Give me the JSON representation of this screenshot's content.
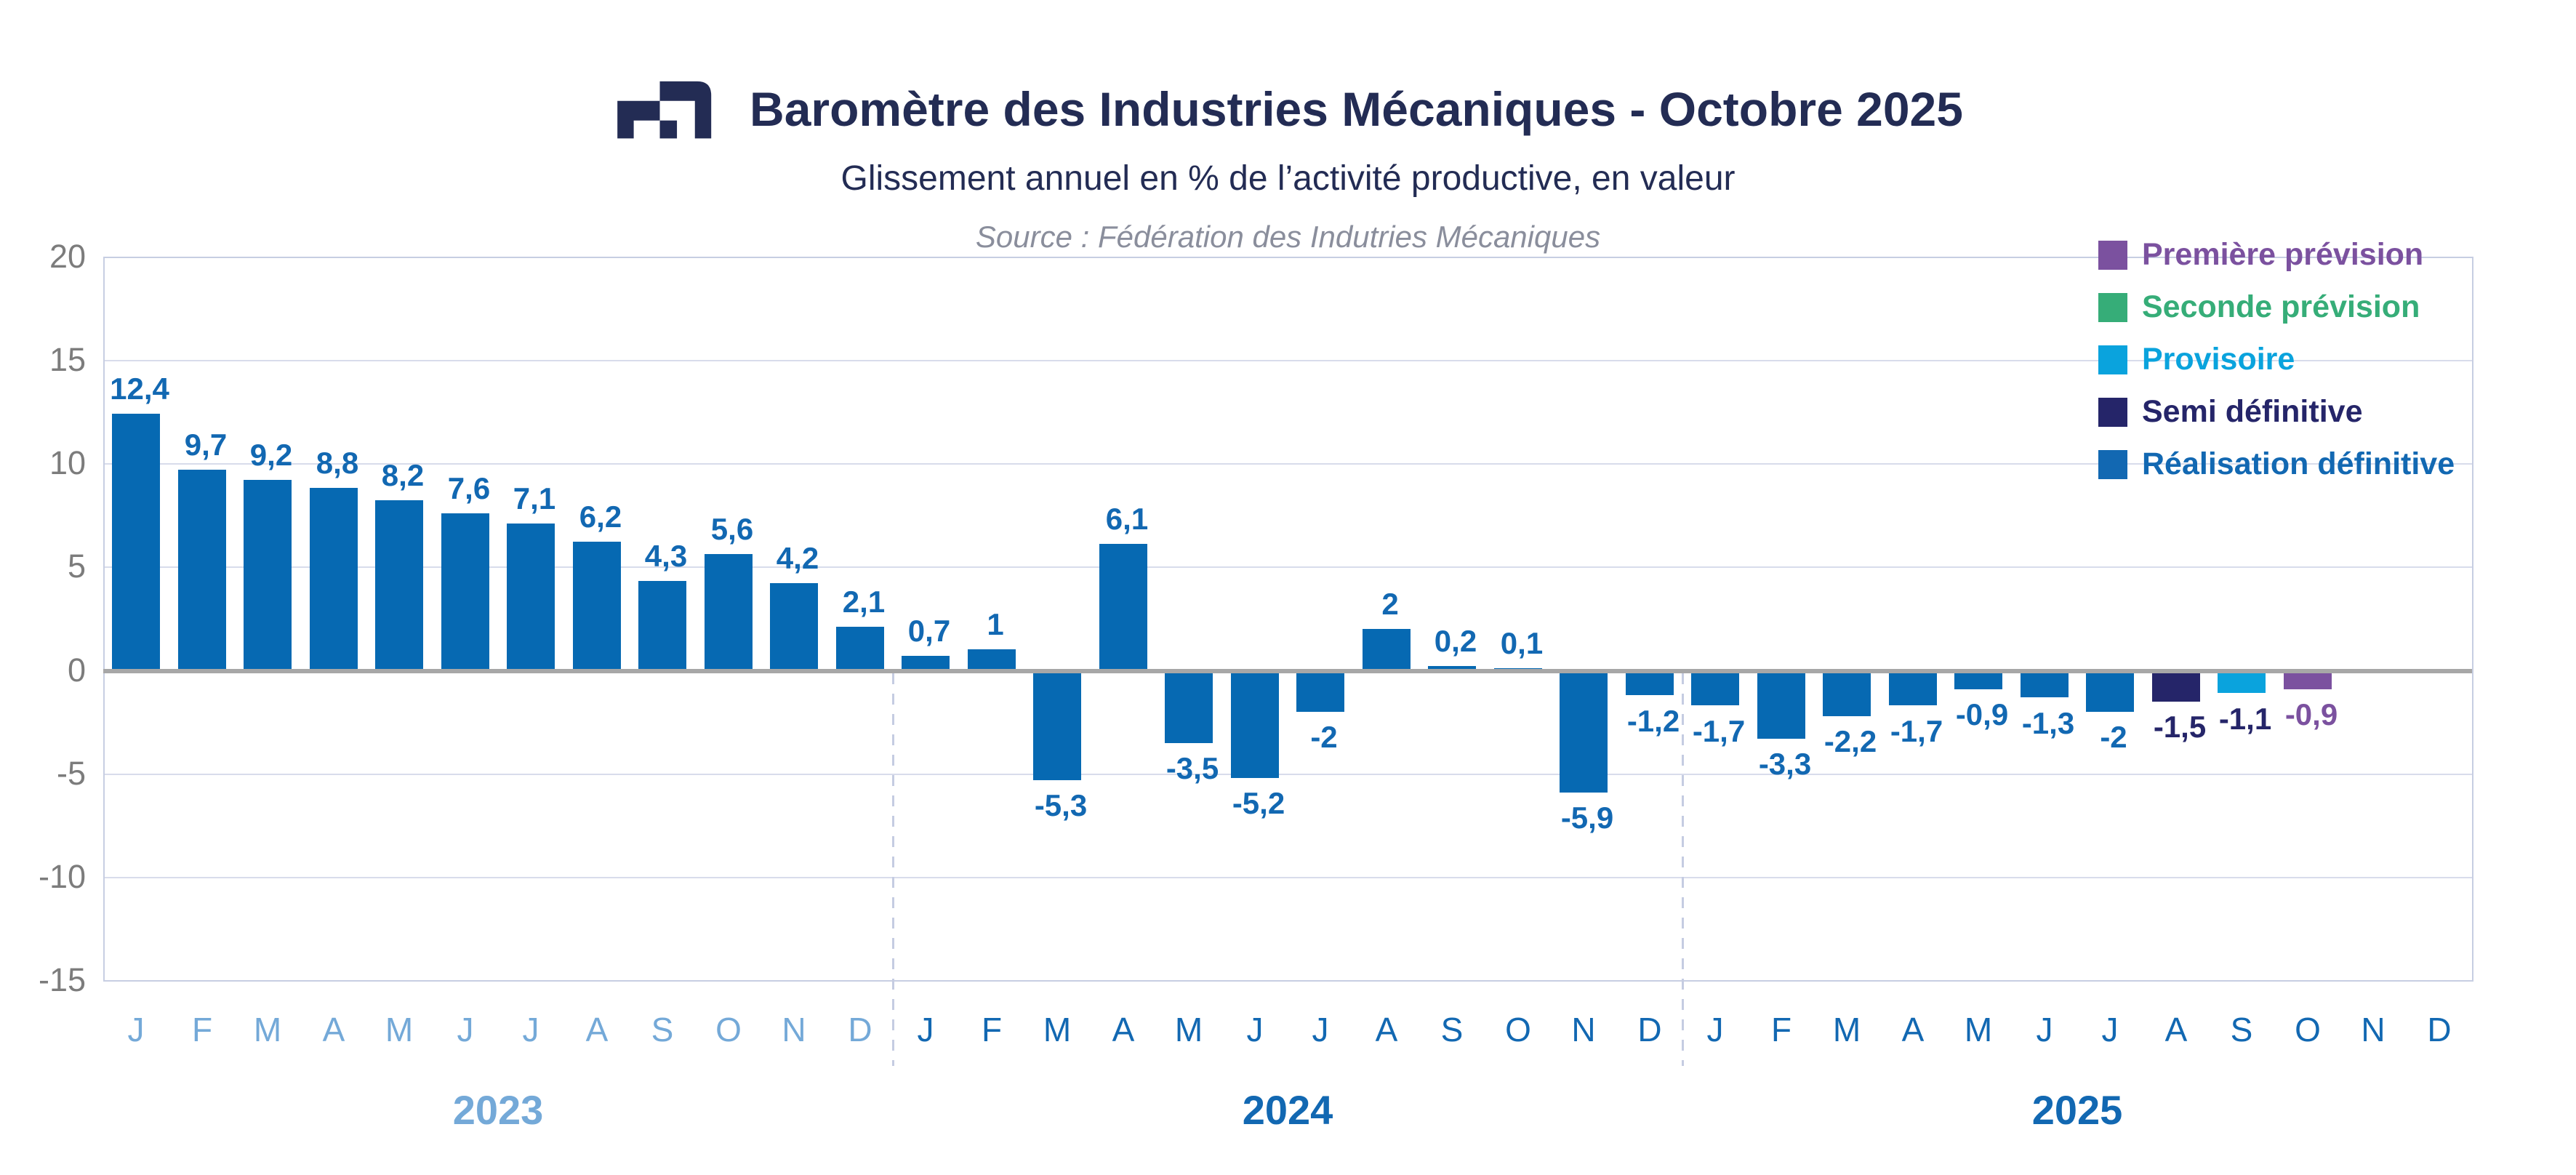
{
  "header": {
    "title": "Baromètre des Industries Mécaniques - Octobre 2025",
    "subtitle": "Glissement annuel en % de l’activité productive, en valeur",
    "source": "Source : Fédération des Indutries Mécaniques"
  },
  "legend": {
    "items": [
      {
        "label": "Première prévision",
        "color": "#7B519F"
      },
      {
        "label": "Seconde prévision",
        "color": "#36AD78"
      },
      {
        "label": "Provisoire",
        "color": "#0AA3DD"
      },
      {
        "label": "Semi définitive",
        "color": "#252569"
      },
      {
        "label": "Réalisation définitive",
        "color": "#1268B2"
      }
    ]
  },
  "chart_data": {
    "type": "bar",
    "title": "Baromètre des Industries Mécaniques - Octobre 2025",
    "subtitle": "Glissement annuel en % de l’activité productive, en valeur",
    "source": "Source : Fédération des Indutries Mécaniques",
    "ylabel": "Glissement annuel en % de l'activité productive, en valeur",
    "ylim": [
      -15,
      20
    ],
    "yticks": [
      20,
      15,
      10,
      5,
      0,
      -5,
      -10,
      -15
    ],
    "grid": true,
    "legend_position": "top-right",
    "colors": {
      "grid": "#D8DCEB",
      "plot_border": "#C7CEE2",
      "zero_line": "#A7A7A7",
      "year_separator": "#C5CCE2",
      "y_tick_text": "#7C7C7C",
      "title_text": "#232C54",
      "source_text": "#8A8E9C",
      "logo": "#232C54"
    },
    "series_colors": {
      "definitive": "#0669B2",
      "semi_definitive": "#252569",
      "provisoire": "#0AA3DD",
      "premiere_prevision": "#7B519F",
      "seconde_prevision": "#36AD78"
    },
    "value_label_colors": {
      "definitive": "#1268B2",
      "semi_definitive": "#252569",
      "provisoire": "#252569",
      "premiere_prevision": "#7B519F"
    },
    "years": [
      {
        "label": "2023",
        "color": "#74A9D8"
      },
      {
        "label": "2024",
        "color": "#1268B2"
      },
      {
        "label": "2025",
        "color": "#1268B2"
      }
    ],
    "months": [
      {
        "year": 0,
        "month": "J",
        "value": 12.4,
        "label": "12,4",
        "category": "definitive"
      },
      {
        "year": 0,
        "month": "F",
        "value": 9.7,
        "label": "9,7",
        "category": "definitive"
      },
      {
        "year": 0,
        "month": "M",
        "value": 9.2,
        "label": "9,2",
        "category": "definitive"
      },
      {
        "year": 0,
        "month": "A",
        "value": 8.8,
        "label": "8,8",
        "category": "definitive"
      },
      {
        "year": 0,
        "month": "M",
        "value": 8.2,
        "label": "8,2",
        "category": "definitive"
      },
      {
        "year": 0,
        "month": "J",
        "value": 7.6,
        "label": "7,6",
        "category": "definitive"
      },
      {
        "year": 0,
        "month": "J",
        "value": 7.1,
        "label": "7,1",
        "category": "definitive"
      },
      {
        "year": 0,
        "month": "A",
        "value": 6.2,
        "label": "6,2",
        "category": "definitive"
      },
      {
        "year": 0,
        "month": "S",
        "value": 4.3,
        "label": "4,3",
        "category": "definitive"
      },
      {
        "year": 0,
        "month": "O",
        "value": 5.6,
        "label": "5,6",
        "category": "definitive"
      },
      {
        "year": 0,
        "month": "N",
        "value": 4.2,
        "label": "4,2",
        "category": "definitive"
      },
      {
        "year": 0,
        "month": "D",
        "value": 2.1,
        "label": "2,1",
        "category": "definitive"
      },
      {
        "year": 1,
        "month": "J",
        "value": 0.7,
        "label": "0,7",
        "category": "definitive"
      },
      {
        "year": 1,
        "month": "F",
        "value": 1,
        "label": "1",
        "category": "definitive"
      },
      {
        "year": 1,
        "month": "M",
        "value": -5.3,
        "label": "-5,3",
        "category": "definitive"
      },
      {
        "year": 1,
        "month": "A",
        "value": 6.1,
        "label": "6,1",
        "category": "definitive"
      },
      {
        "year": 1,
        "month": "M",
        "value": -3.5,
        "label": "-3,5",
        "category": "definitive"
      },
      {
        "year": 1,
        "month": "J",
        "value": -5.2,
        "label": "-5,2",
        "category": "definitive"
      },
      {
        "year": 1,
        "month": "J",
        "value": -2,
        "label": "-2",
        "category": "definitive"
      },
      {
        "year": 1,
        "month": "A",
        "value": 2,
        "label": "2",
        "category": "definitive"
      },
      {
        "year": 1,
        "month": "S",
        "value": 0.2,
        "label": "0,2",
        "category": "definitive"
      },
      {
        "year": 1,
        "month": "O",
        "value": 0.1,
        "label": "0,1",
        "category": "definitive"
      },
      {
        "year": 1,
        "month": "N",
        "value": -5.9,
        "label": "-5,9",
        "category": "definitive"
      },
      {
        "year": 1,
        "month": "D",
        "value": -1.2,
        "label": "-1,2",
        "category": "definitive"
      },
      {
        "year": 2,
        "month": "J",
        "value": -1.7,
        "label": "-1,7",
        "category": "definitive"
      },
      {
        "year": 2,
        "month": "F",
        "value": -3.3,
        "label": "-3,3",
        "category": "definitive"
      },
      {
        "year": 2,
        "month": "M",
        "value": -2.2,
        "label": "-2,2",
        "category": "definitive"
      },
      {
        "year": 2,
        "month": "A",
        "value": -1.7,
        "label": "-1,7",
        "category": "definitive"
      },
      {
        "year": 2,
        "month": "M",
        "value": -0.9,
        "label": "-0,9",
        "category": "definitive"
      },
      {
        "year": 2,
        "month": "J",
        "value": -1.3,
        "label": "-1,3",
        "category": "definitive"
      },
      {
        "year": 2,
        "month": "J",
        "value": -2,
        "label": "-2",
        "category": "definitive"
      },
      {
        "year": 2,
        "month": "A",
        "value": -1.5,
        "label": "-1,5",
        "category": "semi_definitive"
      },
      {
        "year": 2,
        "month": "S",
        "value": -1.1,
        "label": "-1,1",
        "category": "provisoire"
      },
      {
        "year": 2,
        "month": "O",
        "value": -0.9,
        "label": "-0,9",
        "category": "premiere_prevision"
      },
      {
        "year": 2,
        "month": "N",
        "value": null,
        "label": "",
        "category": null
      },
      {
        "year": 2,
        "month": "D",
        "value": null,
        "label": "",
        "category": null
      }
    ]
  }
}
